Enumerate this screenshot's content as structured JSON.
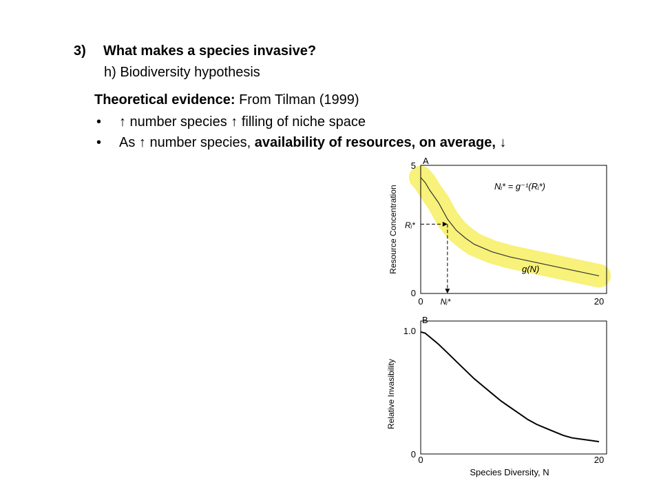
{
  "heading": {
    "number": "3)",
    "title": "What makes a species invasive?"
  },
  "subheading": "h) Biodiversity hypothesis",
  "evidence": {
    "bold": "Theoretical evidence:",
    "rest": " From Tilman (1999)"
  },
  "bullets": [
    {
      "dot": "•",
      "text": "↑ number species ↑ filling of niche space"
    },
    {
      "dot": "•",
      "pre": "As ↑ number species, ",
      "bold": "availability of resources, on average, ↓"
    }
  ],
  "highlight_color": "#f7f06b",
  "chart_data": [
    {
      "panel": "A",
      "type": "line",
      "ylabel": "Resource Concentration",
      "xlabel": "",
      "xlim": [
        0,
        20
      ],
      "ylim": [
        0,
        5
      ],
      "x_ticks": [
        "0",
        "20"
      ],
      "y_ticks": [
        "0",
        "5"
      ],
      "series": [
        {
          "x": [
            0,
            0.5,
            1,
            2,
            3,
            4,
            5,
            6,
            8,
            10,
            12,
            14,
            16,
            18,
            20
          ],
          "y": [
            4.6,
            4.4,
            4.1,
            3.6,
            2.95,
            2.5,
            2.2,
            1.95,
            1.65,
            1.45,
            1.3,
            1.15,
            1.0,
            0.85,
            0.7
          ]
        }
      ],
      "annotations": {
        "equation": "Nᵢ* = g⁻¹(Rᵢ*)",
        "curve_label": "g(N)",
        "r_label": "Rᵢ*",
        "n_label": "Nᵢ*",
        "r_value": 2.75,
        "n_value": 3
      },
      "highlighted": true
    },
    {
      "panel": "B",
      "type": "line",
      "ylabel": "Relative Invasibility",
      "xlabel": "Species Diversity, N",
      "xlim": [
        0,
        20
      ],
      "ylim": [
        0,
        1.0
      ],
      "x_ticks": [
        "0",
        "20"
      ],
      "y_ticks": [
        "0",
        "1.0"
      ],
      "series": [
        {
          "x": [
            0,
            0.5,
            1,
            2,
            3,
            4,
            5,
            6,
            7,
            8,
            9,
            10,
            11,
            12,
            13,
            14,
            15,
            16,
            17,
            18,
            19,
            20
          ],
          "y": [
            0.99,
            0.98,
            0.95,
            0.89,
            0.82,
            0.75,
            0.68,
            0.61,
            0.55,
            0.49,
            0.43,
            0.38,
            0.33,
            0.28,
            0.24,
            0.21,
            0.18,
            0.15,
            0.13,
            0.12,
            0.11,
            0.1
          ]
        }
      ]
    }
  ]
}
